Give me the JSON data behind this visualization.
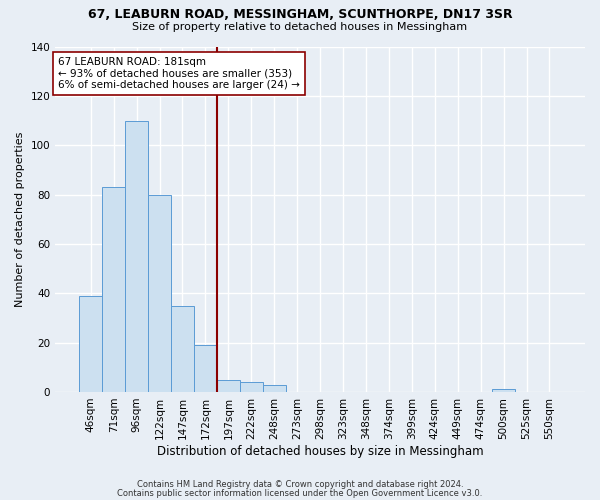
{
  "title": "67, LEABURN ROAD, MESSINGHAM, SCUNTHORPE, DN17 3SR",
  "subtitle": "Size of property relative to detached houses in Messingham",
  "xlabel": "Distribution of detached houses by size in Messingham",
  "ylabel": "Number of detached properties",
  "bar_labels": [
    "46sqm",
    "71sqm",
    "96sqm",
    "122sqm",
    "147sqm",
    "172sqm",
    "197sqm",
    "222sqm",
    "248sqm",
    "273sqm",
    "298sqm",
    "323sqm",
    "348sqm",
    "374sqm",
    "399sqm",
    "424sqm",
    "449sqm",
    "474sqm",
    "500sqm",
    "525sqm",
    "550sqm"
  ],
  "bar_values": [
    39,
    83,
    110,
    80,
    35,
    19,
    5,
    4,
    3,
    0,
    0,
    0,
    0,
    0,
    0,
    0,
    0,
    0,
    1,
    0,
    0
  ],
  "bar_color": "#cce0f0",
  "bar_edge_color": "#5b9bd5",
  "ylim": [
    0,
    140
  ],
  "yticks": [
    0,
    20,
    40,
    60,
    80,
    100,
    120,
    140
  ],
  "red_line_x": 5.5,
  "annotation_title": "67 LEABURN ROAD: 181sqm",
  "annotation_line1": "← 93% of detached houses are smaller (353)",
  "annotation_line2": "6% of semi-detached houses are larger (24) →",
  "footer1": "Contains HM Land Registry data © Crown copyright and database right 2024.",
  "footer2": "Contains public sector information licensed under the Open Government Licence v3.0.",
  "background_color": "#e8eef5",
  "plot_bg_color": "#e8eef5",
  "grid_color": "#ffffff"
}
